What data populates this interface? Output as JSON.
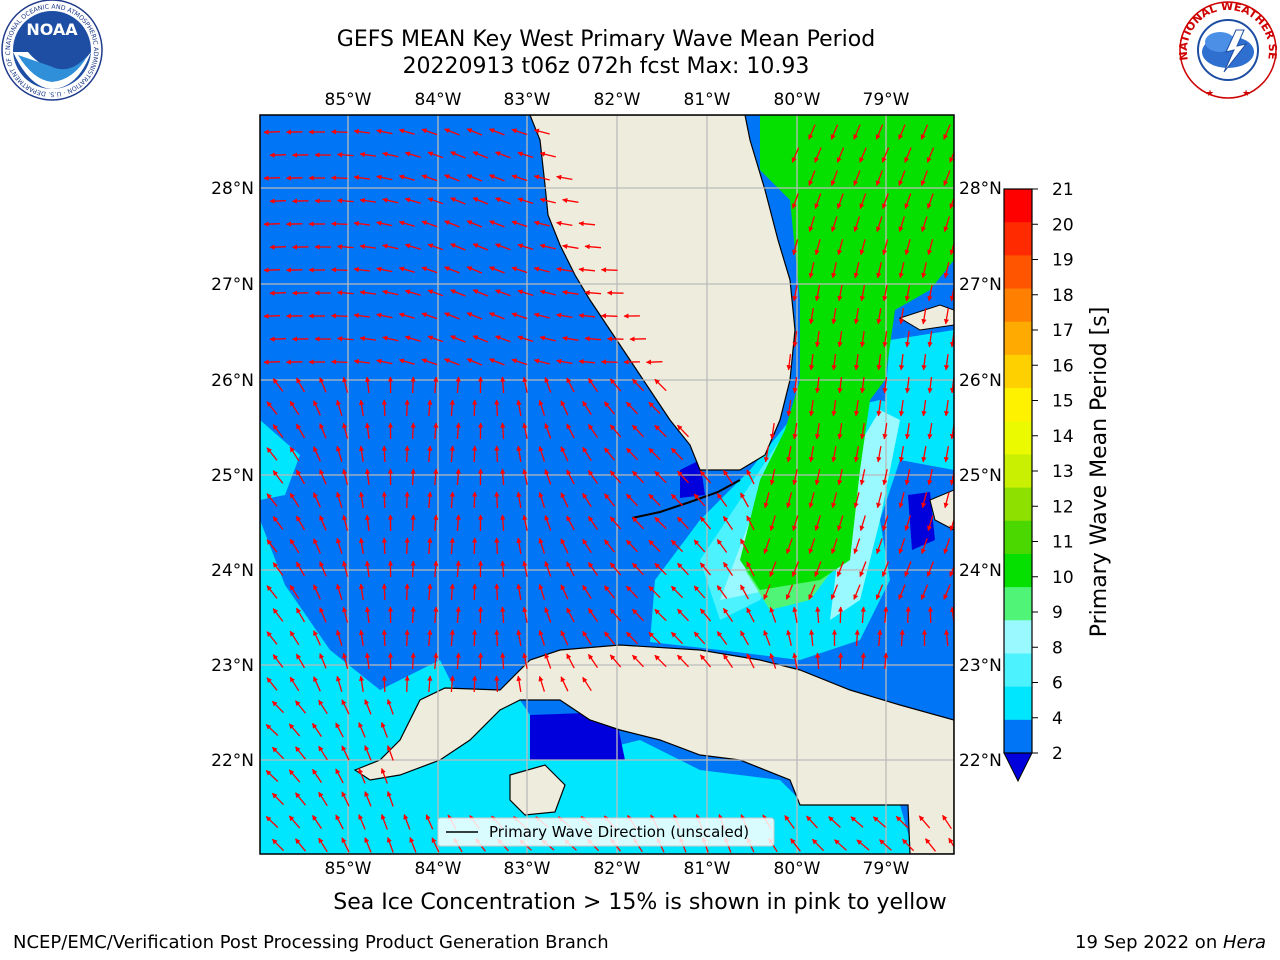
{
  "title": {
    "line1": "GEFS MEAN Key West Primary Wave Mean Period",
    "line2": "20220913 t06z 072h fcst   Max: 10.93"
  },
  "logos": {
    "noaa": {
      "text": "NOAA",
      "ring": "NATIONAL OCEANIC AND ATMOSPHERIC ADMINISTRATION · U.S. DEPARTMENT OF COMMERCE"
    },
    "nws": {
      "ring": "NATIONAL WEATHER SERVICE"
    }
  },
  "map": {
    "lon_labels": [
      "85°W",
      "84°W",
      "83°W",
      "82°W",
      "81°W",
      "80°W",
      "79°W"
    ],
    "lat_labels": [
      "28°N",
      "27°N",
      "26°N",
      "25°N",
      "24°N",
      "23°N",
      "22°N"
    ],
    "legend": "Primary Wave Direction (unscaled)"
  },
  "colorbar": {
    "label": "Primary Wave Mean Period [s]",
    "ticks": [
      "2",
      "4",
      "6",
      "8",
      "9",
      "10",
      "11",
      "12",
      "13",
      "14",
      "15",
      "16",
      "17",
      "18",
      "19",
      "20",
      "21"
    ],
    "colors": [
      "#0075f5",
      "#00e6ff",
      "#4df2ff",
      "#99f9ff",
      "#50f578",
      "#05e000",
      "#4bd800",
      "#8ee000",
      "#c8f000",
      "#ecfa00",
      "#fff200",
      "#ffd000",
      "#ffaa00",
      "#ff8000",
      "#ff5500",
      "#ff2a00",
      "#ff0000"
    ],
    "under_color": "#0000dd"
  },
  "colors": {
    "land": "#eeecdd",
    "arrows": "#ff0000",
    "grid": "#bbbbbb"
  },
  "note": "Sea Ice Concentration > 15% is shown in pink to yellow",
  "footer": {
    "left": "NCEP/EMC/Verification Post Processing Product Generation Branch",
    "right_date": "19 Sep 2022 on ",
    "right_host": "Hera"
  }
}
